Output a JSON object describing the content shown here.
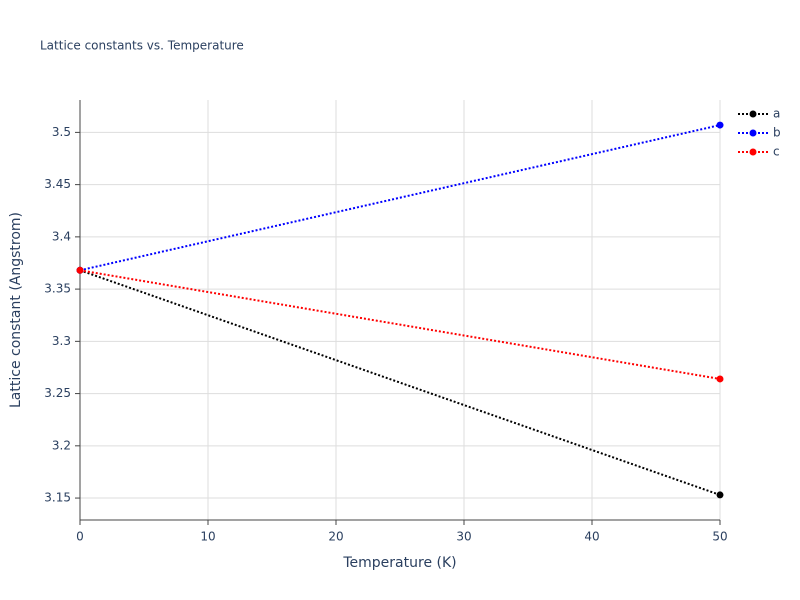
{
  "chart_data": {
    "type": "line",
    "title": "Lattice constants vs. Temperature",
    "xlabel": "Temperature (K)",
    "ylabel": "Lattice constant (Angstrom)",
    "x": [
      0,
      50
    ],
    "series": [
      {
        "name": "a",
        "color": "#000000",
        "values": [
          3.368,
          3.153
        ]
      },
      {
        "name": "b",
        "color": "#0000ff",
        "values": [
          3.368,
          3.507
        ]
      },
      {
        "name": "c",
        "color": "#ff0000",
        "values": [
          3.368,
          3.264
        ]
      }
    ],
    "xlim": [
      0,
      50
    ],
    "xticks": [
      0,
      10,
      20,
      30,
      40,
      50
    ],
    "ylim": [
      3.129,
      3.531
    ],
    "yticks": [
      3.15,
      3.2,
      3.25,
      3.3,
      3.35,
      3.4,
      3.45,
      3.5
    ],
    "grid": true,
    "legend": "top-right"
  }
}
